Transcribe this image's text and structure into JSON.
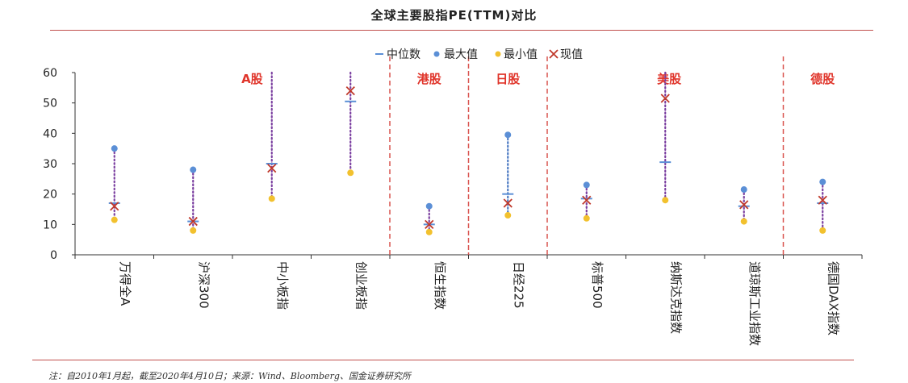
{
  "title": "全球主要股指PE(TTM)对比",
  "note": "注：自2010年1月起，截至2020年4月10日；来源：Wind、Bloomberg、国金证券研究所",
  "chart_data": {
    "type": "scatter",
    "title": "全球主要股指PE(TTM)对比",
    "categories": [
      "万得全A",
      "沪深300",
      "中小板指",
      "创业板指",
      "恒生指数",
      "日经225",
      "标普500",
      "纳斯达克指数",
      "道琼斯工业指数",
      "德国DAX指数"
    ],
    "ylim": [
      0,
      60
    ],
    "yticks": [
      0,
      10,
      20,
      30,
      40,
      50,
      60
    ],
    "series": [
      {
        "name": "中位数",
        "values": [
          17,
          11,
          30,
          50.5,
          10,
          20,
          18.5,
          30.5,
          16,
          17
        ],
        "color": "#5b8fd6",
        "marker": "dash"
      },
      {
        "name": "最大值",
        "values": [
          35,
          28,
          60,
          60,
          16,
          39.5,
          23,
          60,
          21.5,
          24
        ],
        "color": "#5b8fd6",
        "marker": "dot"
      },
      {
        "name": "最小值",
        "values": [
          11.5,
          8,
          18.5,
          27,
          7.5,
          13,
          12,
          18,
          11,
          8
        ],
        "color": "#f2c12e",
        "marker": "dot"
      },
      {
        "name": "现值",
        "values": [
          16,
          11,
          28.5,
          54,
          10,
          17,
          18,
          51.5,
          16.5,
          18
        ],
        "color": "#c0392b",
        "marker": "x"
      }
    ],
    "groups": [
      {
        "label": "A股",
        "start": 0,
        "end": 3
      },
      {
        "label": "港股",
        "start": 4,
        "end": 4
      },
      {
        "label": "日股",
        "start": 5,
        "end": 5
      },
      {
        "label": "美股",
        "start": 6,
        "end": 8
      },
      {
        "label": "德股",
        "start": 9,
        "end": 9
      }
    ],
    "legend_position": "top"
  }
}
